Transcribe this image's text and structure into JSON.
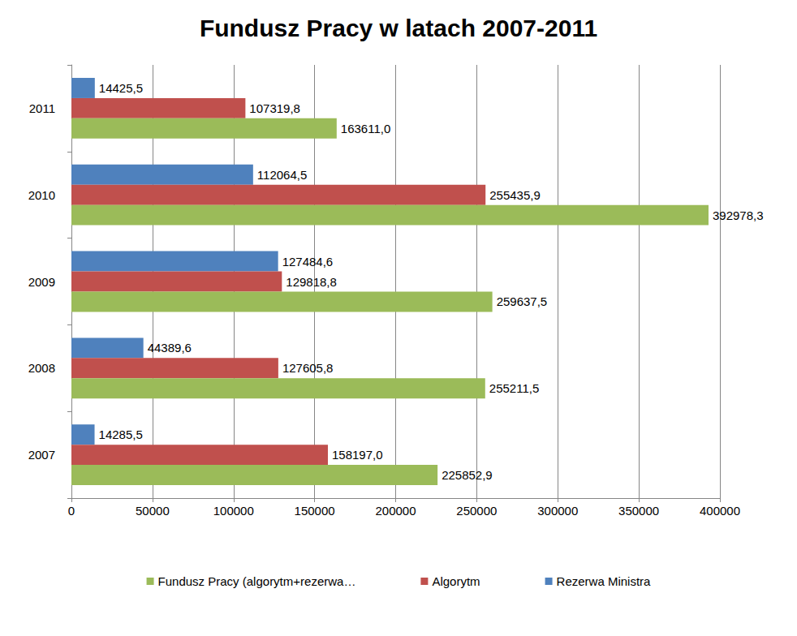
{
  "chart_data": {
    "type": "bar",
    "title": "Fundusz Pracy w latach 2007-2011",
    "orientation": "horizontal",
    "categories": [
      "2007",
      "2008",
      "2009",
      "2010",
      "2011"
    ],
    "series": [
      {
        "name": "Fundusz Pracy (algorytm+rezerwa…",
        "color": "#9bbb59",
        "values": [
          225852.9,
          255211.5,
          259637.5,
          392978.3,
          163611.0
        ],
        "value_labels": [
          "225852,9",
          "255211,5",
          "259637,5",
          "392978,3",
          "163611,0"
        ]
      },
      {
        "name": "Algorytm",
        "color": "#c0504d",
        "values": [
          158197.0,
          127605.8,
          129818.8,
          255435.9,
          107319.8
        ],
        "value_labels": [
          "158197,0",
          "127605,8",
          "129818,8",
          "255435,9",
          "107319,8"
        ]
      },
      {
        "name": "Rezerwa Ministra",
        "color": "#4f81bd",
        "values": [
          14285.5,
          44389.6,
          127484.6,
          112064.5,
          14425.5
        ],
        "value_labels": [
          "14285,5",
          "44389,6",
          "127484,6",
          "112064,5",
          "14425,5"
        ]
      }
    ],
    "xlim": [
      0,
      400000
    ],
    "xticks": [
      0,
      50000,
      100000,
      150000,
      200000,
      250000,
      300000,
      350000,
      400000
    ],
    "grid": true,
    "legend": "bottom",
    "data_labels": true
  }
}
